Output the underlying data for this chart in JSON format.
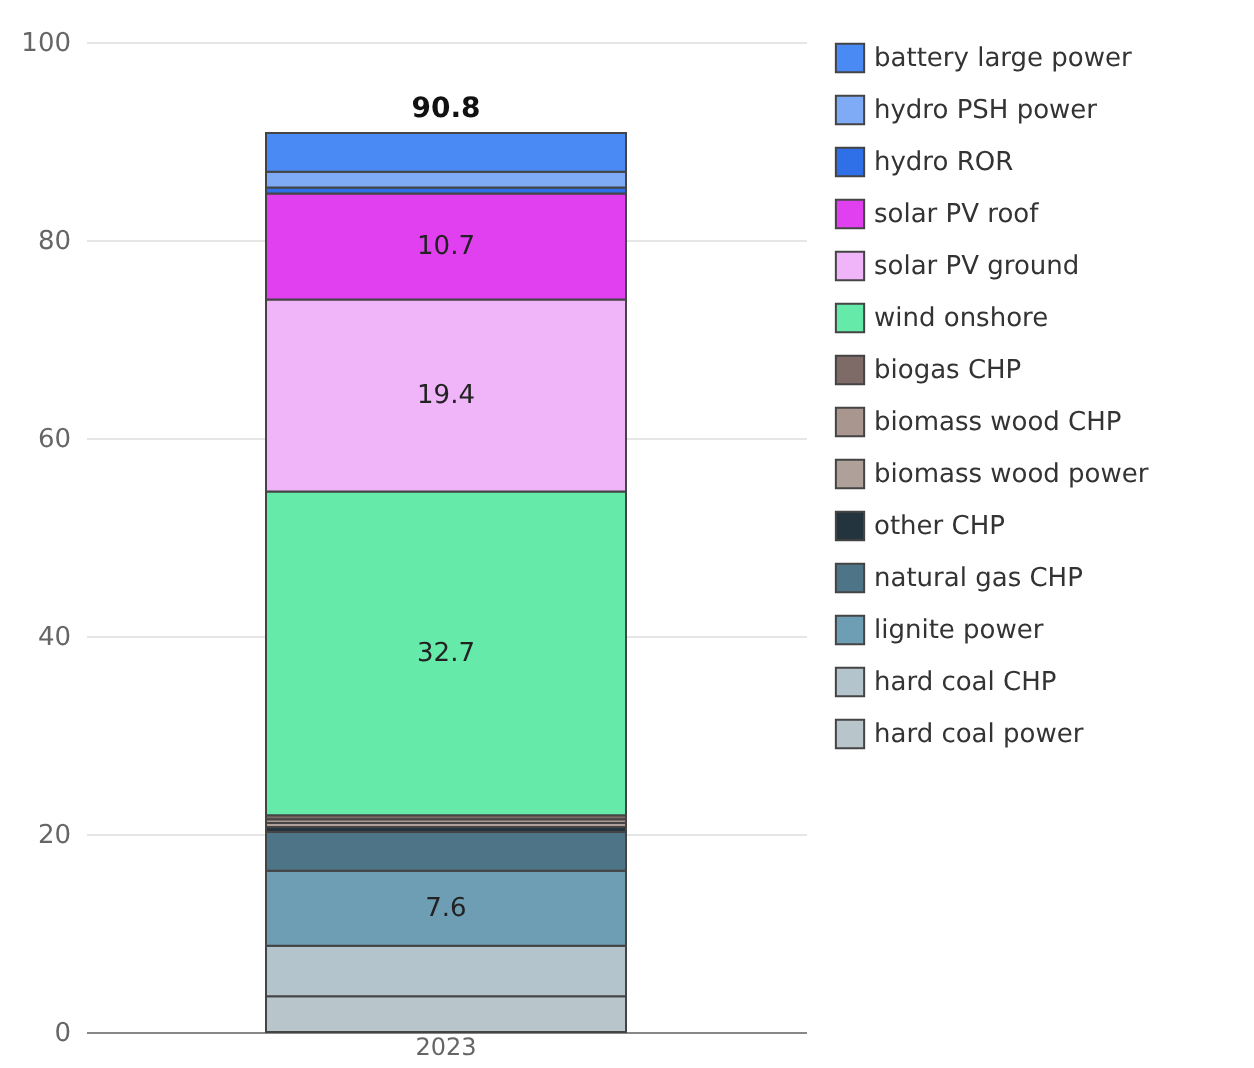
{
  "chart_data": {
    "type": "bar",
    "stacked": true,
    "categories": [
      "2023"
    ],
    "ylim": [
      0,
      100
    ],
    "yticks": [
      0,
      20,
      40,
      60,
      80,
      100
    ],
    "grid": "y",
    "legend": "right",
    "totals": [
      "90.8"
    ],
    "series": [
      {
        "name": "hard coal power",
        "color": "#b8c6cc",
        "values": [
          3.6
        ]
      },
      {
        "name": "hard coal CHP",
        "color": "#b4c4cc",
        "values": [
          5.1
        ]
      },
      {
        "name": "lignite power",
        "color": "#6e9eb4",
        "values": [
          7.6
        ],
        "value_labels": [
          "7.6"
        ]
      },
      {
        "name": "natural gas CHP",
        "color": "#4e7488",
        "values": [
          3.9
        ]
      },
      {
        "name": "other CHP",
        "color": "#24343e",
        "values": [
          0.5
        ]
      },
      {
        "name": "biomass wood power",
        "color": "#b0a09a",
        "values": [
          0.4
        ]
      },
      {
        "name": "biomass wood CHP",
        "color": "#a8968f",
        "values": [
          0.4
        ]
      },
      {
        "name": "biogas CHP",
        "color": "#7e6a66",
        "values": [
          0.4
        ]
      },
      {
        "name": "wind onshore",
        "color": "#66eaaa",
        "values": [
          32.7
        ],
        "value_labels": [
          "32.7"
        ]
      },
      {
        "name": "solar PV ground",
        "color": "#f0b4f8",
        "values": [
          19.4
        ],
        "value_labels": [
          "19.4"
        ]
      },
      {
        "name": "solar PV roof",
        "color": "#e040f0",
        "values": [
          10.7
        ],
        "value_labels": [
          "10.7"
        ]
      },
      {
        "name": "hydro ROR",
        "color": "#2f6fe8",
        "values": [
          0.6
        ]
      },
      {
        "name": "hydro PSH power",
        "color": "#7eaaf6",
        "values": [
          1.6
        ]
      },
      {
        "name": "battery large power",
        "color": "#4a8af4",
        "values": [
          3.9
        ]
      }
    ]
  }
}
